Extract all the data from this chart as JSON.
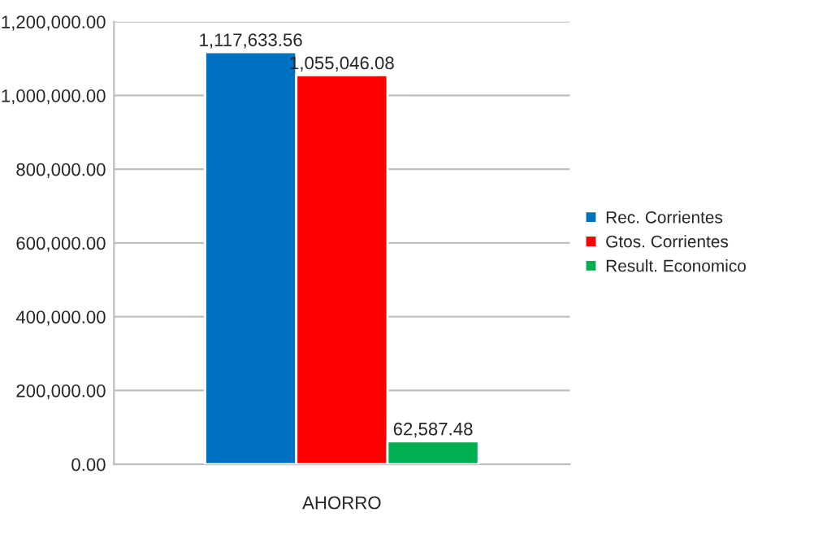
{
  "chart_data": {
    "type": "bar",
    "categories": [
      "AHORRO"
    ],
    "series": [
      {
        "name": "Rec. Corrientes",
        "color": "#0070c0",
        "values": [
          1117633.56
        ],
        "value_labels": [
          "1,117,633.56"
        ]
      },
      {
        "name": "Gtos. Corrientes",
        "color": "#ff0000",
        "values": [
          1055046.08
        ],
        "value_labels": [
          "1,055,046.08"
        ]
      },
      {
        "name": "Result. Economico",
        "color": "#00b050",
        "values": [
          62587.48
        ],
        "value_labels": [
          "62,587.48"
        ]
      }
    ],
    "ylim": [
      0,
      1200000
    ],
    "yticks": [
      {
        "value": 0,
        "label": "0.00"
      },
      {
        "value": 200000,
        "label": "200,000.00"
      },
      {
        "value": 400000,
        "label": "400,000.00"
      },
      {
        "value": 600000,
        "label": "600,000.00"
      },
      {
        "value": 800000,
        "label": "800,000.00"
      },
      {
        "value": 1000000,
        "label": "1,000,000.00"
      },
      {
        "value": 1200000,
        "label": "1,200,000.00"
      }
    ],
    "grid": "y",
    "legend": "right"
  }
}
